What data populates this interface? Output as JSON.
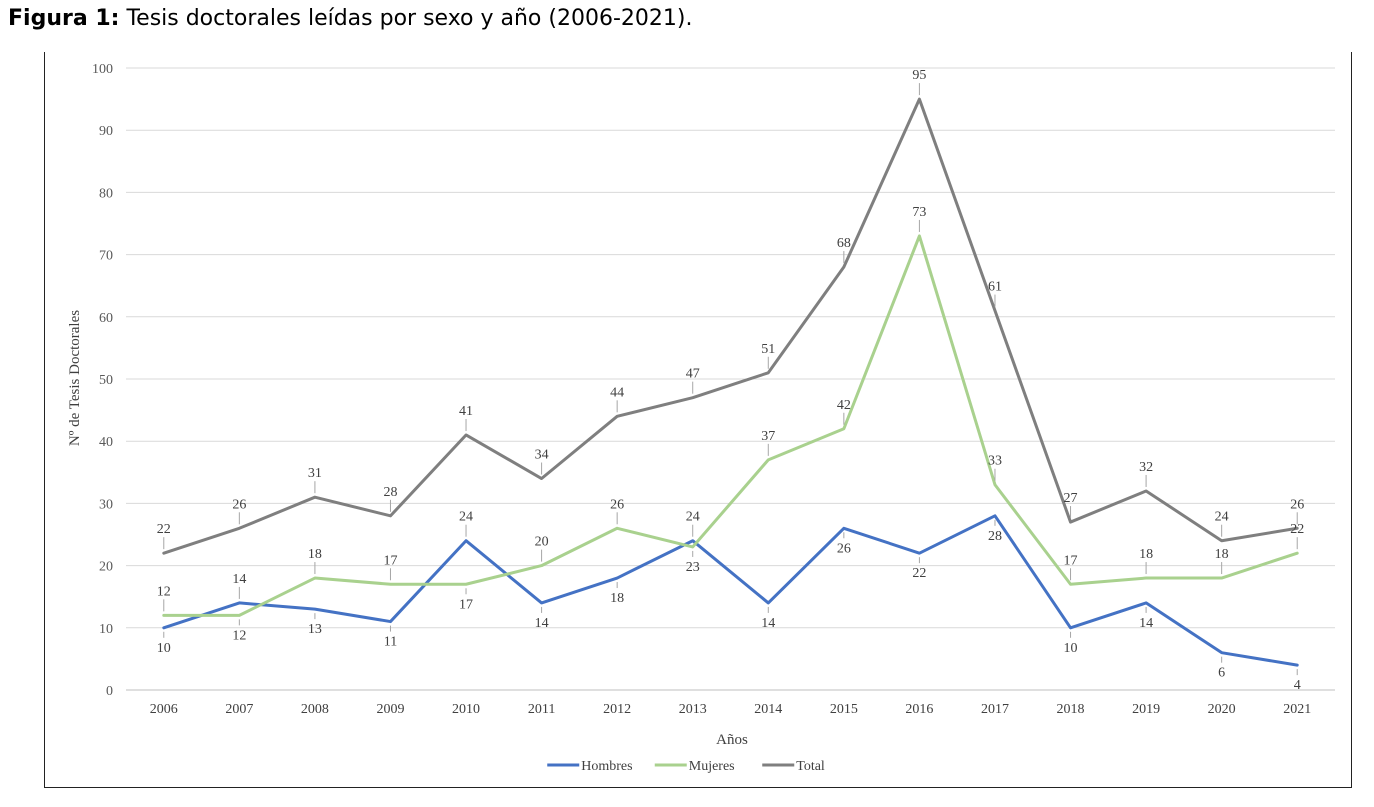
{
  "caption": {
    "label": "Figura 1:",
    "text": "Tesis doctorales leídas por sexo y año (2006-2021)."
  },
  "chart_data": {
    "type": "line",
    "xlabel": "Años",
    "ylabel": "Nº de Tesis Doctorales",
    "ylim": [
      0,
      100
    ],
    "yticks": [
      0,
      10,
      20,
      30,
      40,
      50,
      60,
      70,
      80,
      90,
      100
    ],
    "grid": true,
    "legend_position": "bottom",
    "categories": [
      "2006",
      "2007",
      "2008",
      "2009",
      "2010",
      "2011",
      "2012",
      "2013",
      "2014",
      "2015",
      "2016",
      "2017",
      "2018",
      "2019",
      "2020",
      "2021"
    ],
    "series": [
      {
        "name": "Hombres",
        "color": "#4472c4",
        "values": [
          10,
          14,
          13,
          11,
          24,
          14,
          18,
          24,
          14,
          26,
          22,
          28,
          10,
          14,
          6,
          4
        ]
      },
      {
        "name": "Mujeres",
        "color": "#a9d18e",
        "values": [
          12,
          12,
          18,
          17,
          17,
          20,
          26,
          23,
          37,
          42,
          73,
          33,
          17,
          18,
          18,
          22
        ]
      },
      {
        "name": "Total",
        "color": "#7f7f7f",
        "values": [
          22,
          26,
          31,
          28,
          41,
          34,
          44,
          47,
          51,
          68,
          95,
          61,
          27,
          32,
          24,
          26
        ]
      }
    ]
  }
}
